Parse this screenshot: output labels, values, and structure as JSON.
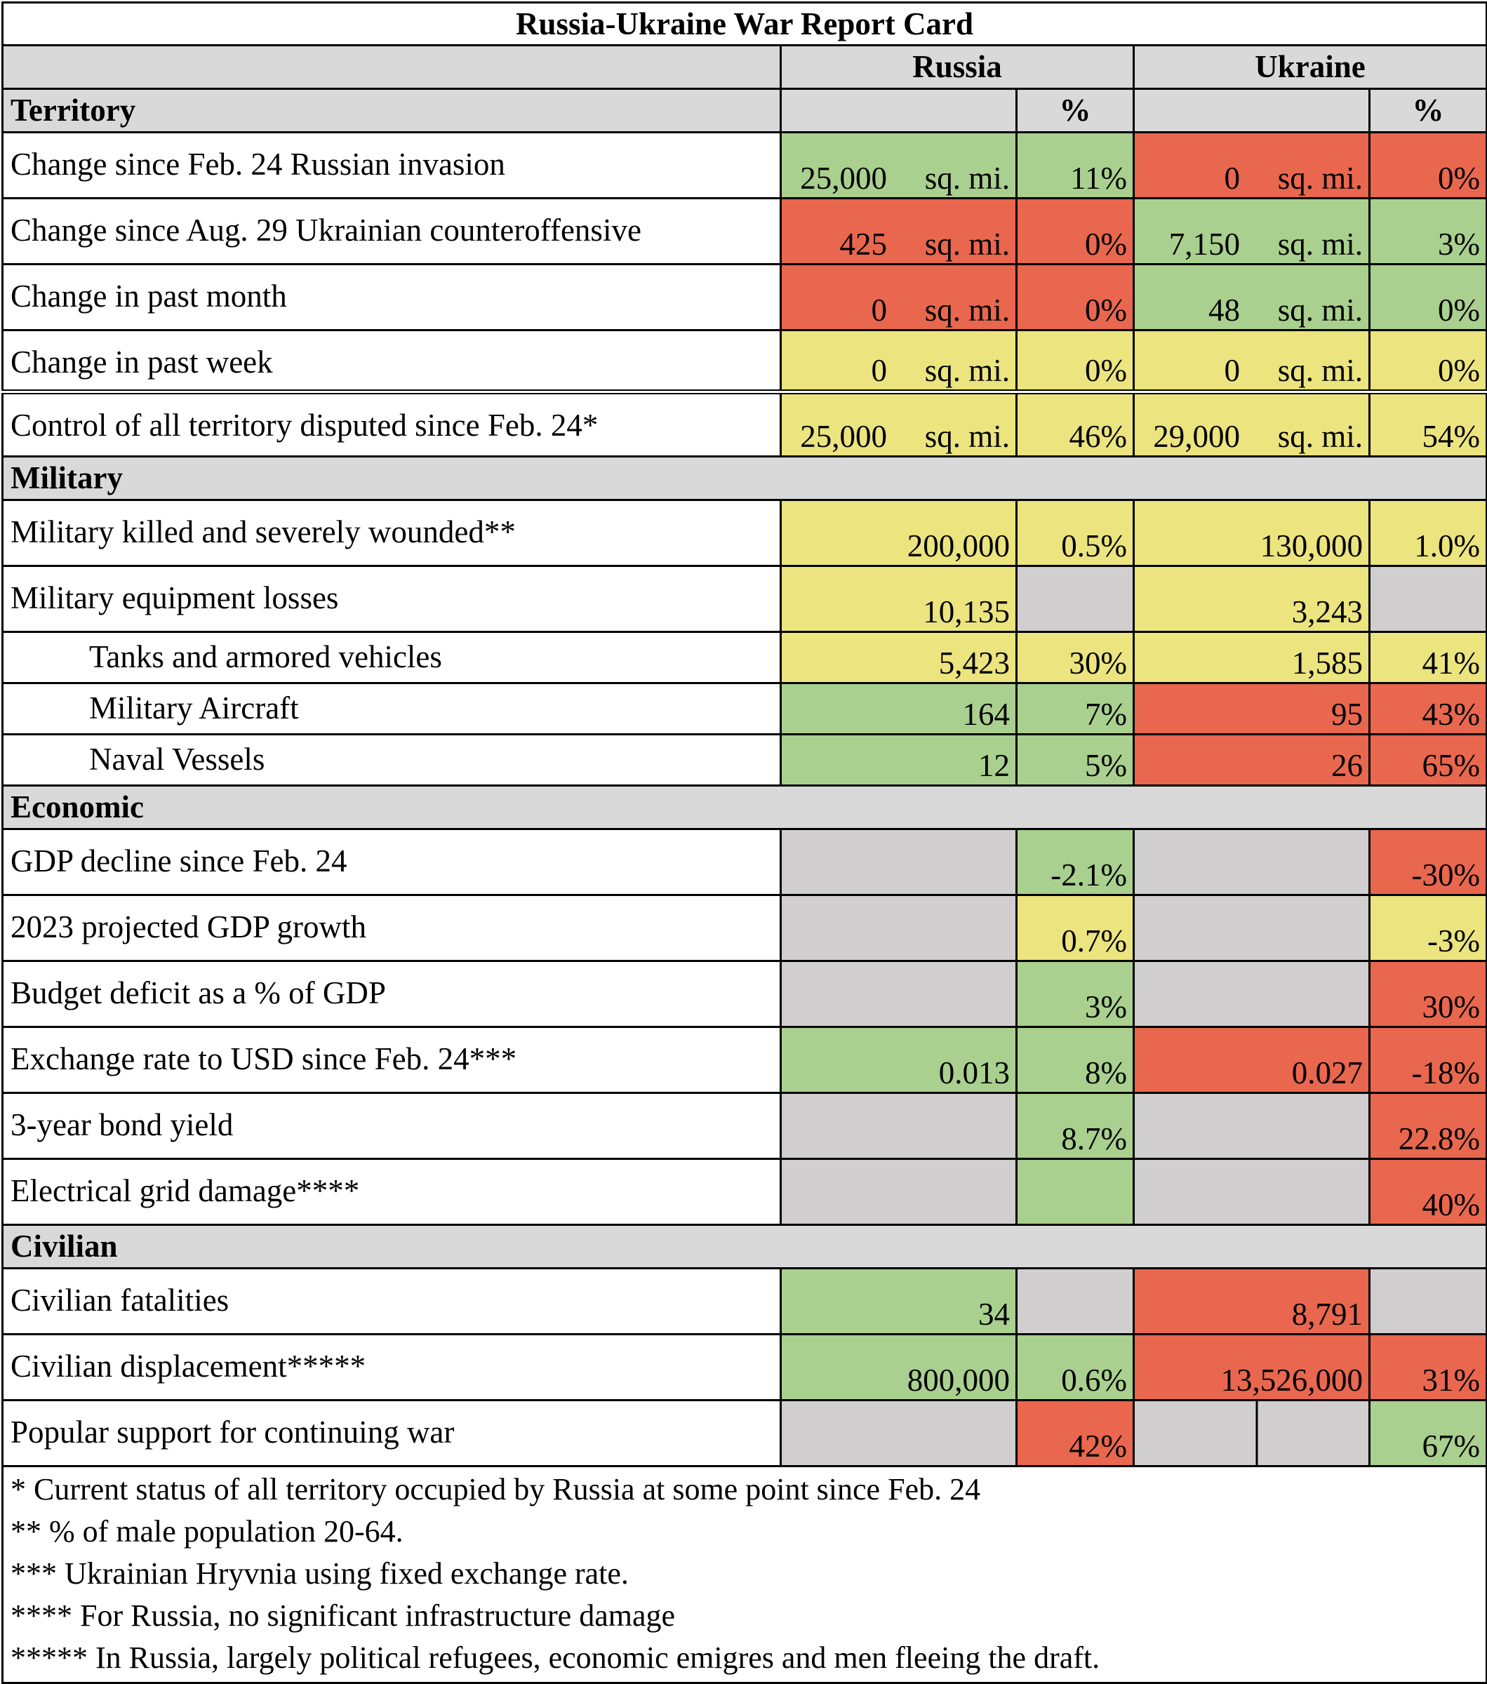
{
  "title": "Russia-Ukraine War Report Card",
  "countries": {
    "russia": "Russia",
    "ukraine": "Ukraine"
  },
  "pct_header": "%",
  "unit": "sq. mi.",
  "sections": {
    "territory": "Territory",
    "military": "Military",
    "economic": "Economic",
    "civilian": "Civilian"
  },
  "territory": [
    {
      "label": "Change since Feb. 24 Russian invasion",
      "ru_val": "25,000",
      "ru_pct": "11%",
      "ua_val": "0",
      "ua_pct": "0%"
    },
    {
      "label": "Change since Aug. 29 Ukrainian counteroffensive",
      "ru_val": "425",
      "ru_pct": "0%",
      "ua_val": "7,150",
      "ua_pct": "3%"
    },
    {
      "label": "Change in past month",
      "ru_val": "0",
      "ru_pct": "0%",
      "ua_val": "48",
      "ua_pct": "0%"
    },
    {
      "label": "Change in past week",
      "ru_val": "0",
      "ru_pct": "0%",
      "ua_val": "0",
      "ua_pct": "0%"
    },
    {
      "label": "Control of all territory disputed since Feb. 24*",
      "ru_val": "25,000",
      "ru_pct": "46%",
      "ua_val": "29,000",
      "ua_pct": "54%"
    }
  ],
  "military": [
    {
      "label": "Military killed and severely wounded**",
      "ru_val": "200,000",
      "ru_pct": "0.5%",
      "ua_val": "130,000",
      "ua_pct": "1.0%"
    },
    {
      "label": "Military equipment losses",
      "ru_val": "10,135",
      "ru_pct": "",
      "ua_val": "3,243",
      "ua_pct": ""
    },
    {
      "label": "Tanks and armored vehicles",
      "ru_val": "5,423",
      "ru_pct": "30%",
      "ua_val": "1,585",
      "ua_pct": "41%"
    },
    {
      "label": "Military Aircraft",
      "ru_val": "164",
      "ru_pct": "7%",
      "ua_val": "95",
      "ua_pct": "43%"
    },
    {
      "label": "Naval Vessels",
      "ru_val": "12",
      "ru_pct": "5%",
      "ua_val": "26",
      "ua_pct": "65%"
    }
  ],
  "economic": [
    {
      "label": "GDP decline since Feb. 24",
      "ru_val": "",
      "ru_pct": "-2.1%",
      "ua_val": "",
      "ua_pct": "-30%"
    },
    {
      "label": "2023 projected GDP growth",
      "ru_val": "",
      "ru_pct": "0.7%",
      "ua_val": "",
      "ua_pct": "-3%"
    },
    {
      "label": "Budget deficit as a % of GDP",
      "ru_val": "",
      "ru_pct": "3%",
      "ua_val": "",
      "ua_pct": "30%"
    },
    {
      "label": "Exchange rate to USD since Feb. 24***",
      "ru_val": "0.013",
      "ru_pct": "8%",
      "ua_val": "0.027",
      "ua_pct": "-18%"
    },
    {
      "label": "3-year bond yield",
      "ru_val": "",
      "ru_pct": "8.7%",
      "ua_val": "",
      "ua_pct": "22.8%"
    },
    {
      "label": "Electrical grid damage****",
      "ru_val": "",
      "ru_pct": "",
      "ua_val": "",
      "ua_pct": "40%"
    }
  ],
  "civilian": [
    {
      "label": "Civilian fatalities",
      "ru_val": "34",
      "ru_pct": "",
      "ua_val": "8,791",
      "ua_pct": ""
    },
    {
      "label": "Civilian displacement*****",
      "ru_val": "800,000",
      "ru_pct": "0.6%",
      "ua_val": "13,526,000",
      "ua_pct": "31%"
    },
    {
      "label": "Popular support for continuing war",
      "ru_val": "",
      "ru_pct": "42%",
      "ua_val": "",
      "ua_pct": "67%"
    }
  ],
  "footnotes": [
    "* Current status of all territory occupied by Russia at some point since Feb. 24",
    "** % of male population 20-64.",
    "*** Ukrainian Hryvnia using fixed exchange rate.",
    "**** For Russia, no significant infrastructure damage",
    "***** In Russia, largely political refugees, economic emigres and men fleeing the draft."
  ],
  "colors": {
    "green": "#a9d08e",
    "red": "#e8674e",
    "yellow": "#ebe47f",
    "grey": "#d0cece",
    "header_grey": "#d9d9d9"
  }
}
